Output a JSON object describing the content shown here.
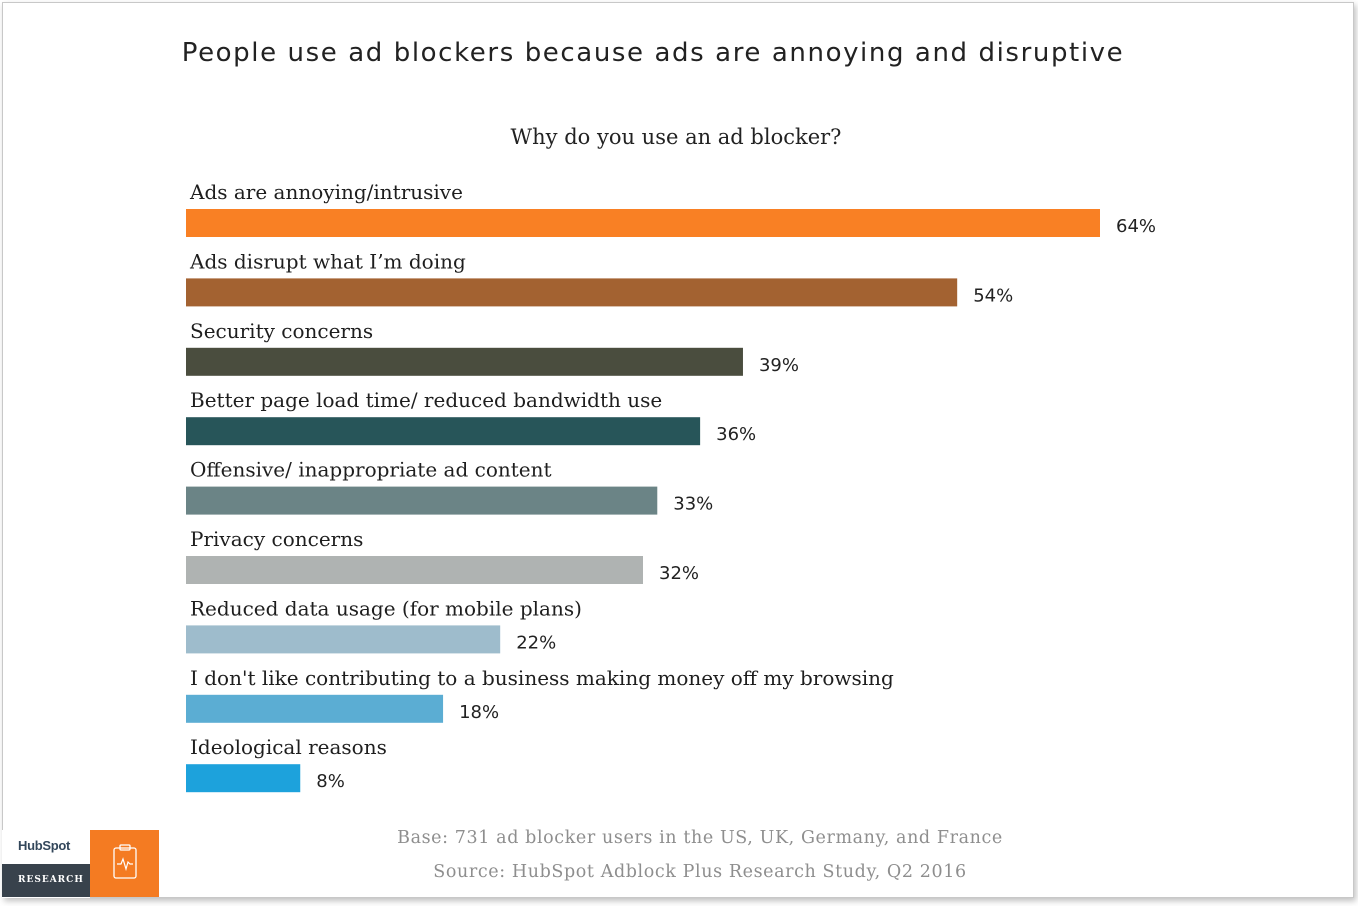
{
  "title": "People use ad blockers because ads are annoying and disruptive",
  "chart_data": {
    "type": "bar",
    "orientation": "horizontal",
    "title": "Why do you use an ad blocker?",
    "categories": [
      "Ads are annoying/intrusive",
      "Ads disrupt what I’m doing",
      "Security concerns",
      "Better page load time/ reduced bandwidth use",
      "Offensive/ inappropriate ad content",
      "Privacy concerns",
      "Reduced data usage (for mobile plans)",
      "I don't like contributing to a business making money off my browsing",
      "Ideological reasons"
    ],
    "values": [
      64,
      54,
      39,
      36,
      33,
      32,
      22,
      18,
      8
    ],
    "value_labels": [
      "64%",
      "54%",
      "39%",
      "36%",
      "33%",
      "32%",
      "22%",
      "18%",
      "8%"
    ],
    "colors": [
      "#f98024",
      "#a36231",
      "#4a4d3e",
      "#275559",
      "#6b8486",
      "#afb3b2",
      "#9ebccc",
      "#5badd3",
      "#1da2dc"
    ],
    "xlim": [
      0,
      64
    ],
    "grid": false,
    "legend": "none"
  },
  "footnotes": {
    "base": "Base: 731 ad blocker users in the US, UK, Germany, and France",
    "source": "Source: HubSpot Adblock Plus Research Study, Q2 2016"
  },
  "logo": {
    "brand": "HubSpot",
    "sublabel": "RESEARCH",
    "icon": "clipboard-pulse-icon"
  }
}
